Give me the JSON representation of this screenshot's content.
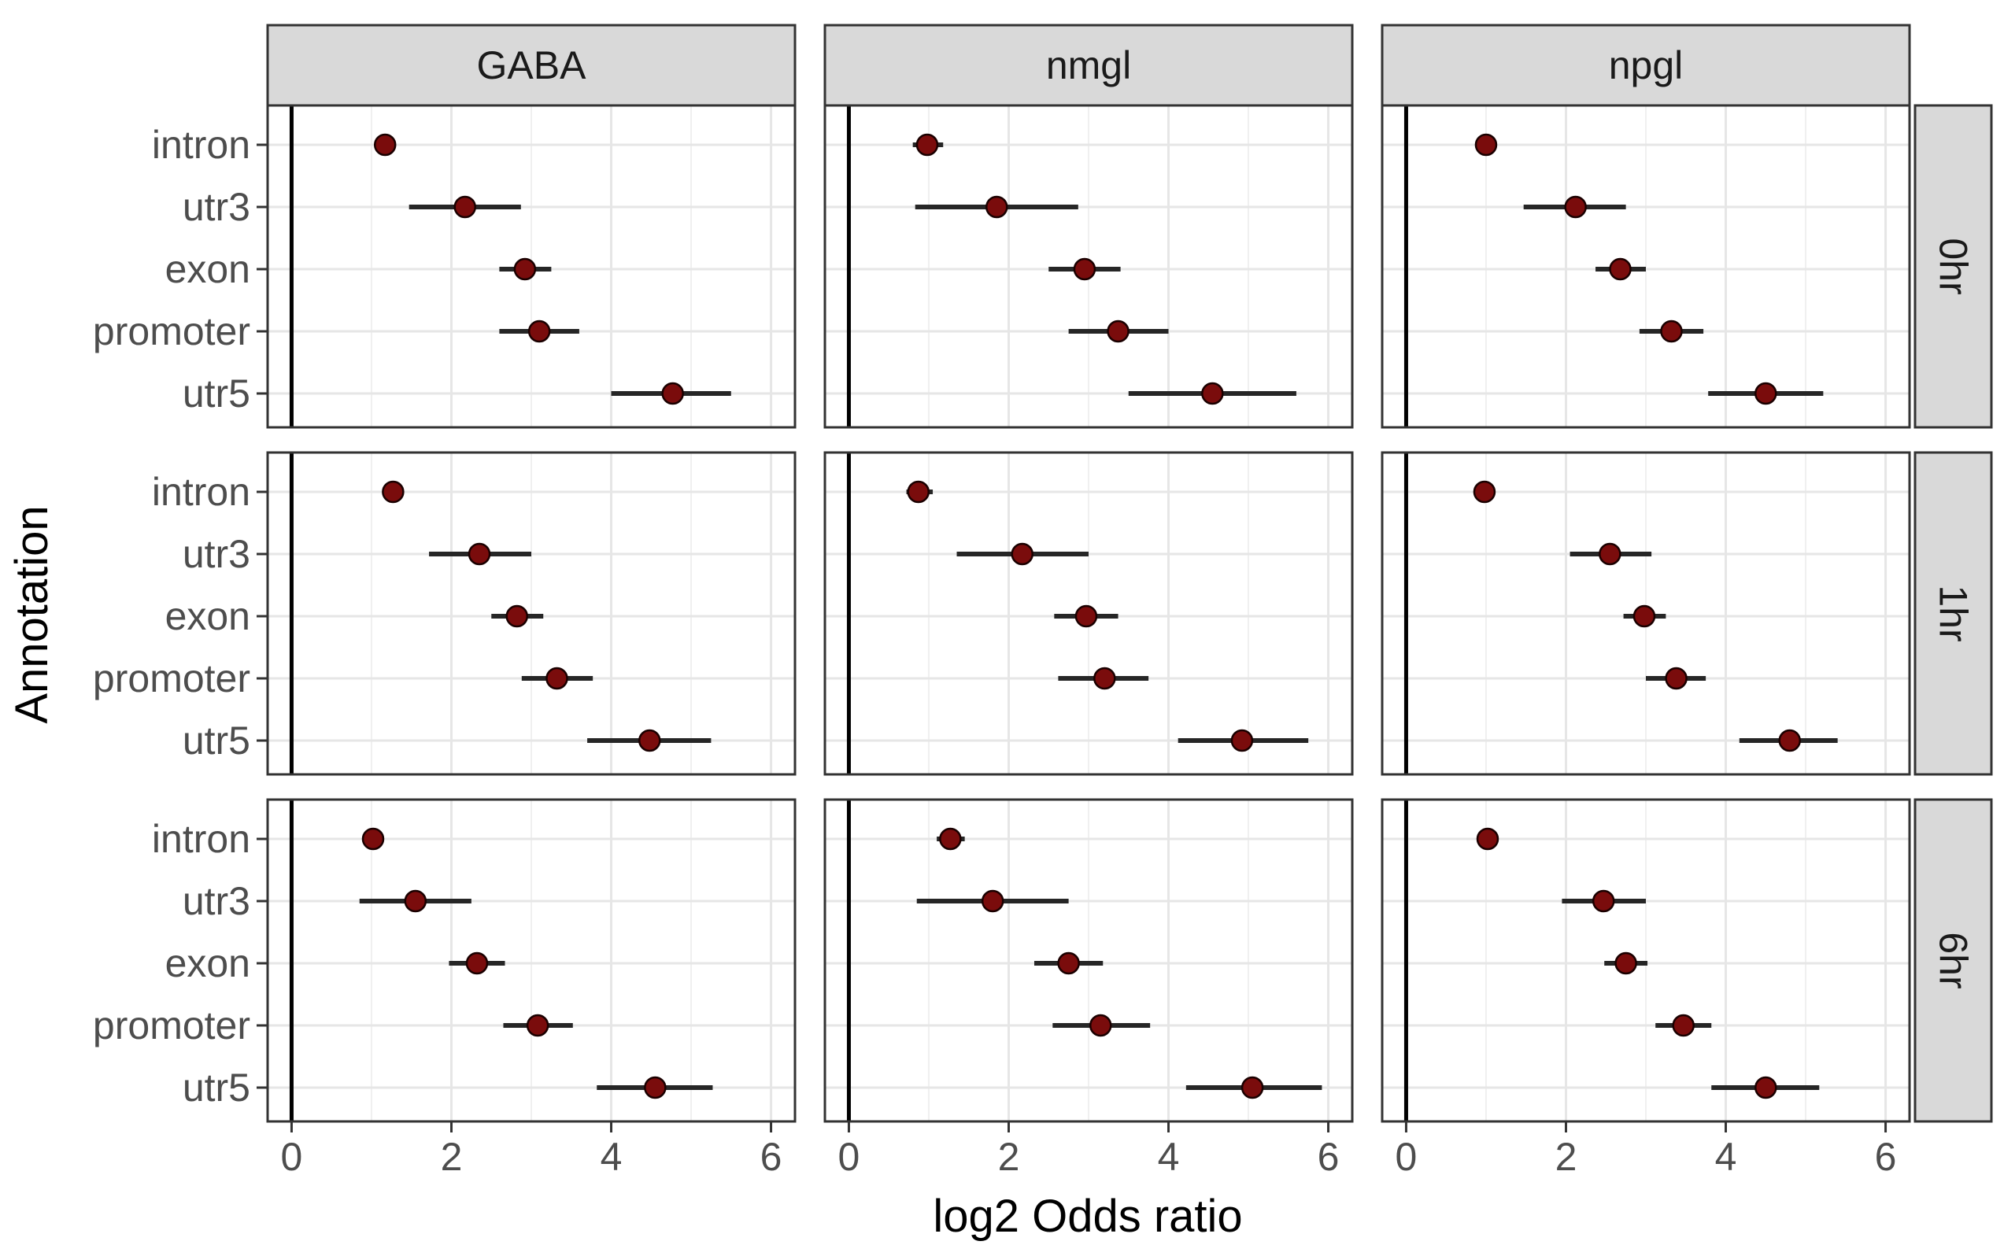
{
  "chart_data": {
    "type": "scatter",
    "subtype": "faceted point-range (forest) plot",
    "xlabel": "log2 Odds ratio",
    "ylabel": "Annotation",
    "xlim": [
      -0.3,
      6.3
    ],
    "x_ticks": [
      0,
      2,
      4,
      6
    ],
    "x_tick_labels": [
      "0",
      "2",
      "4",
      "6"
    ],
    "reference_line_x": 0,
    "grid": true,
    "theme": "bw",
    "point_color": "#7a0c0c",
    "categories": [
      "intron",
      "utr3",
      "exon",
      "promoter",
      "utr5"
    ],
    "col_facets": [
      "GABA",
      "nmgl",
      "npgl"
    ],
    "row_facets": [
      "0hr",
      "1hr",
      "6hr"
    ],
    "panels": [
      {
        "row": "0hr",
        "col": "GABA",
        "points": [
          {
            "category": "intron",
            "estimate": 1.17,
            "low": 1.05,
            "high": 1.3
          },
          {
            "category": "utr3",
            "estimate": 2.17,
            "low": 1.47,
            "high": 2.87
          },
          {
            "category": "exon",
            "estimate": 2.92,
            "low": 2.6,
            "high": 3.25
          },
          {
            "category": "promoter",
            "estimate": 3.1,
            "low": 2.6,
            "high": 3.6
          },
          {
            "category": "utr5",
            "estimate": 4.77,
            "low": 4.0,
            "high": 5.5
          }
        ]
      },
      {
        "row": "0hr",
        "col": "nmgl",
        "points": [
          {
            "category": "intron",
            "estimate": 0.98,
            "low": 0.8,
            "high": 1.18
          },
          {
            "category": "utr3",
            "estimate": 1.85,
            "low": 0.83,
            "high": 2.87
          },
          {
            "category": "exon",
            "estimate": 2.95,
            "low": 2.5,
            "high": 3.4
          },
          {
            "category": "promoter",
            "estimate": 3.37,
            "low": 2.75,
            "high": 4.0
          },
          {
            "category": "utr5",
            "estimate": 4.55,
            "low": 3.5,
            "high": 5.6
          }
        ]
      },
      {
        "row": "0hr",
        "col": "npgl",
        "points": [
          {
            "category": "intron",
            "estimate": 1.0,
            "low": 0.95,
            "high": 1.05
          },
          {
            "category": "utr3",
            "estimate": 2.12,
            "low": 1.47,
            "high": 2.75
          },
          {
            "category": "exon",
            "estimate": 2.68,
            "low": 2.37,
            "high": 3.0
          },
          {
            "category": "promoter",
            "estimate": 3.32,
            "low": 2.92,
            "high": 3.72
          },
          {
            "category": "utr5",
            "estimate": 4.5,
            "low": 3.78,
            "high": 5.22
          }
        ]
      },
      {
        "row": "1hr",
        "col": "GABA",
        "points": [
          {
            "category": "intron",
            "estimate": 1.27,
            "low": 1.15,
            "high": 1.4
          },
          {
            "category": "utr3",
            "estimate": 2.35,
            "low": 1.72,
            "high": 3.0
          },
          {
            "category": "exon",
            "estimate": 2.82,
            "low": 2.5,
            "high": 3.15
          },
          {
            "category": "promoter",
            "estimate": 3.32,
            "low": 2.88,
            "high": 3.77
          },
          {
            "category": "utr5",
            "estimate": 4.48,
            "low": 3.7,
            "high": 5.25
          }
        ]
      },
      {
        "row": "1hr",
        "col": "nmgl",
        "points": [
          {
            "category": "intron",
            "estimate": 0.87,
            "low": 0.72,
            "high": 1.05
          },
          {
            "category": "utr3",
            "estimate": 2.17,
            "low": 1.35,
            "high": 3.0
          },
          {
            "category": "exon",
            "estimate": 2.97,
            "low": 2.57,
            "high": 3.37
          },
          {
            "category": "promoter",
            "estimate": 3.2,
            "low": 2.62,
            "high": 3.75
          },
          {
            "category": "utr5",
            "estimate": 4.92,
            "low": 4.12,
            "high": 5.75
          }
        ]
      },
      {
        "row": "1hr",
        "col": "npgl",
        "points": [
          {
            "category": "intron",
            "estimate": 0.98,
            "low": 0.93,
            "high": 1.03
          },
          {
            "category": "utr3",
            "estimate": 2.55,
            "low": 2.05,
            "high": 3.07
          },
          {
            "category": "exon",
            "estimate": 2.98,
            "low": 2.72,
            "high": 3.25
          },
          {
            "category": "promoter",
            "estimate": 3.38,
            "low": 3.0,
            "high": 3.75
          },
          {
            "category": "utr5",
            "estimate": 4.8,
            "low": 4.17,
            "high": 5.4
          }
        ]
      },
      {
        "row": "6hr",
        "col": "GABA",
        "points": [
          {
            "category": "intron",
            "estimate": 1.02,
            "low": 0.95,
            "high": 1.08
          },
          {
            "category": "utr3",
            "estimate": 1.55,
            "low": 0.85,
            "high": 2.25
          },
          {
            "category": "exon",
            "estimate": 2.32,
            "low": 1.97,
            "high": 2.67
          },
          {
            "category": "promoter",
            "estimate": 3.08,
            "low": 2.65,
            "high": 3.52
          },
          {
            "category": "utr5",
            "estimate": 4.55,
            "low": 3.82,
            "high": 5.27
          }
        ]
      },
      {
        "row": "6hr",
        "col": "nmgl",
        "points": [
          {
            "category": "intron",
            "estimate": 1.27,
            "low": 1.1,
            "high": 1.45
          },
          {
            "category": "utr3",
            "estimate": 1.8,
            "low": 0.85,
            "high": 2.75
          },
          {
            "category": "exon",
            "estimate": 2.75,
            "low": 2.32,
            "high": 3.18
          },
          {
            "category": "promoter",
            "estimate": 3.15,
            "low": 2.55,
            "high": 3.77
          },
          {
            "category": "utr5",
            "estimate": 5.05,
            "low": 4.22,
            "high": 5.92
          }
        ]
      },
      {
        "row": "6hr",
        "col": "npgl",
        "points": [
          {
            "category": "intron",
            "estimate": 1.02,
            "low": 0.97,
            "high": 1.07
          },
          {
            "category": "utr3",
            "estimate": 2.47,
            "low": 1.95,
            "high": 3.0
          },
          {
            "category": "exon",
            "estimate": 2.75,
            "low": 2.48,
            "high": 3.02
          },
          {
            "category": "promoter",
            "estimate": 3.47,
            "low": 3.12,
            "high": 3.82
          },
          {
            "category": "utr5",
            "estimate": 4.5,
            "low": 3.82,
            "high": 5.17
          }
        ]
      }
    ]
  }
}
